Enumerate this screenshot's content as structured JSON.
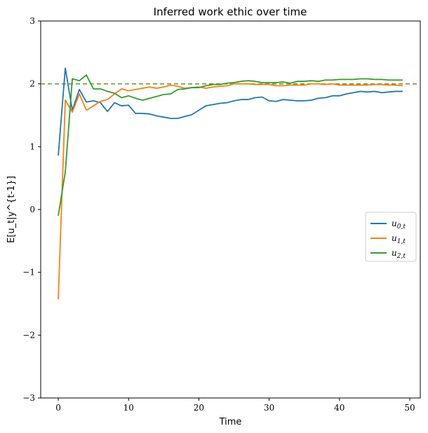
{
  "chart_data": {
    "type": "line",
    "title": "Inferred work ethic over time",
    "xlabel": "Time",
    "ylabel": "E[u_t|y^{t-1}]",
    "xlim": [
      -2.5,
      51.5
    ],
    "ylim": [
      -3,
      3
    ],
    "xticks": [
      0,
      10,
      20,
      30,
      40,
      50
    ],
    "yticks": [
      -3,
      -2,
      -1,
      0,
      1,
      2,
      3
    ],
    "grid": false,
    "legend_position": "center-right",
    "reference_line": {
      "y": 2,
      "style": "dashed",
      "color": "#6a9a3a"
    },
    "x": [
      0,
      1,
      2,
      3,
      4,
      5,
      6,
      7,
      8,
      9,
      10,
      11,
      12,
      13,
      14,
      15,
      16,
      17,
      18,
      19,
      20,
      21,
      22,
      23,
      24,
      25,
      26,
      27,
      28,
      29,
      30,
      31,
      32,
      33,
      34,
      35,
      36,
      37,
      38,
      39,
      40,
      41,
      42,
      43,
      44,
      45,
      46,
      47,
      48,
      49
    ],
    "series": [
      {
        "name": "u_{0,t}",
        "label_base": "u",
        "label_sub": "0,t",
        "color": "#1f77b4",
        "values": [
          0.86,
          2.25,
          1.58,
          1.91,
          1.71,
          1.73,
          1.7,
          1.56,
          1.7,
          1.65,
          1.66,
          1.53,
          1.53,
          1.52,
          1.49,
          1.47,
          1.45,
          1.45,
          1.48,
          1.51,
          1.58,
          1.65,
          1.67,
          1.69,
          1.7,
          1.73,
          1.75,
          1.75,
          1.78,
          1.79,
          1.73,
          1.72,
          1.75,
          1.74,
          1.73,
          1.73,
          1.74,
          1.77,
          1.78,
          1.81,
          1.81,
          1.84,
          1.86,
          1.88,
          1.87,
          1.88,
          1.86,
          1.87,
          1.88,
          1.88
        ]
      },
      {
        "name": "u_{1,t}",
        "label_base": "u",
        "label_sub": "1,t",
        "color": "#ff7f0e",
        "values": [
          -1.43,
          1.74,
          1.55,
          1.84,
          1.58,
          1.65,
          1.72,
          1.75,
          1.84,
          1.92,
          1.89,
          1.91,
          1.93,
          1.95,
          1.93,
          1.95,
          1.98,
          1.96,
          1.93,
          1.94,
          1.95,
          1.93,
          1.95,
          1.96,
          1.97,
          2.0,
          2.0,
          2.0,
          1.99,
          1.99,
          1.99,
          1.97,
          1.97,
          1.98,
          1.98,
          1.98,
          2.0,
          2.0,
          1.99,
          2.0,
          1.98,
          1.98,
          1.98,
          1.98,
          1.98,
          1.99,
          1.99,
          1.98,
          1.98,
          1.97
        ]
      },
      {
        "name": "u_{2,t}",
        "label_base": "u",
        "label_sub": "2,t",
        "color": "#2ca02c",
        "values": [
          -0.1,
          0.6,
          2.08,
          2.05,
          2.14,
          1.92,
          1.92,
          1.88,
          1.85,
          1.78,
          1.81,
          1.77,
          1.74,
          1.77,
          1.8,
          1.83,
          1.84,
          1.91,
          1.92,
          1.94,
          1.94,
          1.97,
          1.99,
          1.99,
          2.01,
          2.02,
          2.04,
          2.05,
          2.04,
          2.02,
          2.02,
          2.02,
          2.03,
          2.01,
          2.04,
          2.04,
          2.05,
          2.04,
          2.06,
          2.06,
          2.07,
          2.07,
          2.07,
          2.08,
          2.08,
          2.07,
          2.07,
          2.06,
          2.06,
          2.06
        ]
      }
    ]
  }
}
